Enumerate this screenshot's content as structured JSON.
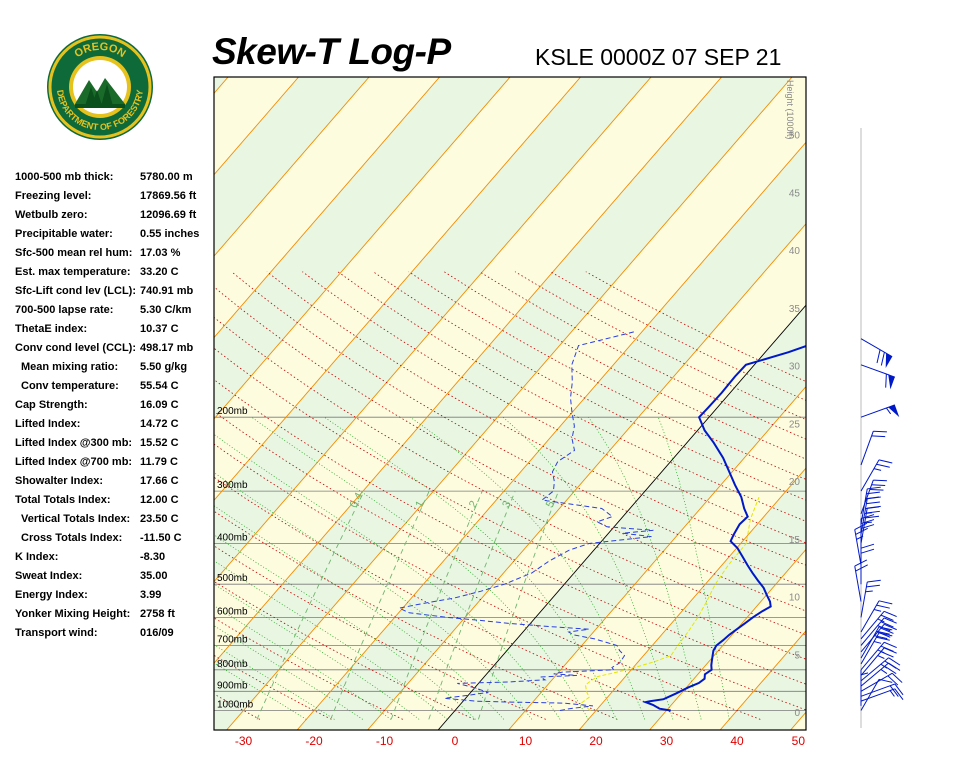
{
  "logo": {
    "top_text": "OREGON",
    "ring_text": "DEPARTMENT OF FORESTRY"
  },
  "title": "Skew-T Log-P",
  "station_time": "KSLE 0000Z 07 SEP 21",
  "stats": [
    {
      "label": "1000-500 mb thick:",
      "value": "5780.00 m",
      "indent": false
    },
    {
      "label": "Freezing level:",
      "value": "17869.56 ft",
      "indent": false
    },
    {
      "label": "Wetbulb zero:",
      "value": "12096.69 ft",
      "indent": false
    },
    {
      "label": "Precipitable water:",
      "value": "0.55 inches",
      "indent": false
    },
    {
      "label": "Sfc-500 mean rel hum:",
      "value": "17.03 %",
      "indent": false
    },
    {
      "label": "Est. max temperature:",
      "value": "33.20 C",
      "indent": false
    },
    {
      "label": "Sfc-Lift cond lev (LCL):",
      "value": "740.91 mb",
      "indent": false
    },
    {
      "label": "700-500 lapse rate:",
      "value": "5.30 C/km",
      "indent": false
    },
    {
      "label": "ThetaE index:",
      "value": "10.37 C",
      "indent": false
    },
    {
      "label": "Conv cond level (CCL):",
      "value": "498.17 mb",
      "indent": false
    },
    {
      "label": "Mean mixing ratio:",
      "value": "5.50 g/kg",
      "indent": true
    },
    {
      "label": "Conv temperature:",
      "value": "55.54 C",
      "indent": true
    },
    {
      "label": "Cap Strength:",
      "value": "16.09 C",
      "indent": false
    },
    {
      "label": "Lifted Index:",
      "value": "14.72 C",
      "indent": false
    },
    {
      "label": "Lifted Index @300 mb:",
      "value": "15.52 C",
      "indent": false
    },
    {
      "label": "Lifted Index @700 mb:",
      "value": "11.79 C",
      "indent": false
    },
    {
      "label": "Showalter Index:",
      "value": "17.66 C",
      "indent": false
    },
    {
      "label": "Total Totals Index:",
      "value": "12.00 C",
      "indent": false
    },
    {
      "label": "Vertical Totals Index:",
      "value": "23.50 C",
      "indent": true
    },
    {
      "label": "Cross Totals Index:",
      "value": "-11.50 C",
      "indent": true
    },
    {
      "label": "K Index:",
      "value": "-8.30",
      "indent": false
    },
    {
      "label": "Sweat Index:",
      "value": "35.00",
      "indent": false
    },
    {
      "label": "Energy Index:",
      "value": "3.99",
      "indent": false
    },
    {
      "label": "Yonker Mixing Height:",
      "value": "2758 ft",
      "indent": false
    },
    {
      "label": "Transport wind:",
      "value": "016/09",
      "indent": false
    }
  ],
  "chart_data": {
    "type": "line",
    "x_axis": {
      "unit": "C",
      "range": [
        -30,
        50
      ],
      "ticks": [
        -30,
        -20,
        -10,
        0,
        10,
        20,
        30,
        40,
        50
      ]
    },
    "pressure_levels": [
      {
        "p": 200,
        "label": "200mb"
      },
      {
        "p": 300,
        "label": "300mb"
      },
      {
        "p": 400,
        "label": "400mb"
      },
      {
        "p": 500,
        "label": "500mb"
      },
      {
        "p": 600,
        "label": "600mb"
      },
      {
        "p": 700,
        "label": "700mb"
      },
      {
        "p": 800,
        "label": "800mb"
      },
      {
        "p": 900,
        "label": "900mb"
      },
      {
        "p": 1000,
        "label": "1000mb"
      }
    ],
    "height_axis": {
      "label": "Height (1000ft)",
      "ticks": [
        {
          "ft": 0,
          "label": "0"
        },
        {
          "ft": 5,
          "label": "5"
        },
        {
          "ft": 10,
          "label": "10"
        },
        {
          "ft": 15,
          "label": "15"
        },
        {
          "ft": 20,
          "label": "20"
        },
        {
          "ft": 25,
          "label": "25"
        },
        {
          "ft": 30,
          "label": "30"
        },
        {
          "ft": 35,
          "label": "35"
        },
        {
          "ft": 40,
          "label": "40"
        },
        {
          "ft": 45,
          "label": "45"
        },
        {
          "ft": 50,
          "label": "50"
        }
      ]
    },
    "mixing_ratio_labels": [
      "0.4",
      "1",
      "2",
      "3",
      "5"
    ],
    "temperature_profile": [
      [
        1000,
        30.6
      ],
      [
        990,
        28.8
      ],
      [
        970,
        27.4
      ],
      [
        955,
        26.0
      ],
      [
        950,
        26.5
      ],
      [
        940,
        28.2
      ],
      [
        910,
        29.3
      ],
      [
        880,
        30.3
      ],
      [
        860,
        31.2
      ],
      [
        840,
        31.5
      ],
      [
        820,
        31.0
      ],
      [
        800,
        31.4
      ],
      [
        780,
        30.8
      ],
      [
        760,
        30.3
      ],
      [
        740,
        29.8
      ],
      [
        720,
        29.3
      ],
      [
        700,
        29.1
      ],
      [
        680,
        29.4
      ],
      [
        660,
        29.6
      ],
      [
        640,
        30.0
      ],
      [
        620,
        30.4
      ],
      [
        600,
        30.8
      ],
      [
        580,
        31.4
      ],
      [
        565,
        32.0
      ],
      [
        550,
        31.3
      ],
      [
        530,
        30.0
      ],
      [
        510,
        28.7
      ],
      [
        490,
        27.0
      ],
      [
        470,
        25.3
      ],
      [
        450,
        23.6
      ],
      [
        430,
        21.9
      ],
      [
        410,
        20.1
      ],
      [
        395,
        18.3
      ],
      [
        380,
        17.9
      ],
      [
        360,
        17.5
      ],
      [
        345,
        17.7
      ],
      [
        330,
        16.2
      ],
      [
        310,
        14.4
      ],
      [
        290,
        12.0
      ],
      [
        270,
        9.6
      ],
      [
        250,
        7.0
      ],
      [
        230,
        3.8
      ],
      [
        215,
        1.0
      ],
      [
        200,
        -1.4
      ],
      [
        190,
        -1.3
      ],
      [
        175,
        -1.2
      ],
      [
        160,
        -1.3
      ],
      [
        150,
        -1.2
      ],
      [
        140,
        3.3
      ],
      [
        130,
        7.1
      ],
      [
        122,
        9.8
      ]
    ],
    "dewpoint_profile": [
      [
        1000,
        14.9
      ],
      [
        990,
        16.0
      ],
      [
        975,
        19.0
      ],
      [
        960,
        14.5
      ],
      [
        955,
        7.0
      ],
      [
        950,
        2.0
      ],
      [
        935,
        -3.0
      ],
      [
        920,
        0.0
      ],
      [
        905,
        2.5
      ],
      [
        880,
        -0.4
      ],
      [
        862,
        -3.0
      ],
      [
        855,
        4.0
      ],
      [
        845,
        9.0
      ],
      [
        832,
        8.0
      ],
      [
        825,
        13.0
      ],
      [
        818,
        9.5
      ],
      [
        810,
        10.5
      ],
      [
        800,
        17.5
      ],
      [
        790,
        17.0
      ],
      [
        770,
        17.5
      ],
      [
        740,
        17.3
      ],
      [
        720,
        16.0
      ],
      [
        700,
        15.0
      ],
      [
        675,
        11.0
      ],
      [
        660,
        7.5
      ],
      [
        650,
        6.5
      ],
      [
        640,
        9.0
      ],
      [
        630,
        2.5
      ],
      [
        620,
        -3.0
      ],
      [
        610,
        -7.5
      ],
      [
        600,
        -12.5
      ],
      [
        585,
        -18.5
      ],
      [
        570,
        -20.5
      ],
      [
        555,
        -17.5
      ],
      [
        540,
        -14.0
      ],
      [
        520,
        -11.0
      ],
      [
        500,
        -8.5
      ],
      [
        470,
        -6.0
      ],
      [
        440,
        -5.0
      ],
      [
        415,
        -3.5
      ],
      [
        400,
        -1.5
      ],
      [
        385,
        6.5
      ],
      [
        378,
        2.0
      ],
      [
        372,
        6.0
      ],
      [
        365,
        -1.0
      ],
      [
        355,
        -3.0
      ],
      [
        345,
        -1.5
      ],
      [
        330,
        -4.0
      ],
      [
        315,
        -13.5
      ],
      [
        300,
        -13.0
      ],
      [
        285,
        -14.0
      ],
      [
        270,
        -15.5
      ],
      [
        255,
        -16.0
      ],
      [
        240,
        -15.0
      ],
      [
        225,
        -16.8
      ],
      [
        210,
        -18.0
      ],
      [
        195,
        -20.0
      ],
      [
        180,
        -22.0
      ],
      [
        165,
        -23.7
      ],
      [
        150,
        -25.9
      ],
      [
        135,
        -27.3
      ],
      [
        125,
        -21.0
      ]
    ],
    "parcel_path": [
      [
        1000,
        19.2
      ],
      [
        960,
        17.0
      ],
      [
        930,
        17.4
      ],
      [
        900,
        16.3
      ],
      [
        870,
        15.4
      ],
      [
        850,
        15.6
      ],
      [
        830,
        16.1
      ],
      [
        805,
        18.8
      ],
      [
        790,
        20.2
      ],
      [
        765,
        22.3
      ],
      [
        740,
        23.9
      ],
      [
        700,
        23.6
      ],
      [
        650,
        23.4
      ],
      [
        600,
        23.0
      ],
      [
        550,
        22.3
      ],
      [
        500,
        21.4
      ],
      [
        450,
        20.9
      ],
      [
        400,
        20.8
      ],
      [
        350,
        18.4
      ],
      [
        310,
        16.9
      ]
    ],
    "winds": [
      {
        "p": 1000,
        "dir": 30,
        "spd": 10
      },
      {
        "p": 975,
        "dir": 360,
        "spd": 5
      },
      {
        "p": 950,
        "dir": 70,
        "spd": 15
      },
      {
        "p": 925,
        "dir": 70,
        "spd": 20
      },
      {
        "p": 900,
        "dir": 60,
        "spd": 20
      },
      {
        "p": 875,
        "dir": 50,
        "spd": 25
      },
      {
        "p": 850,
        "dir": 50,
        "spd": 25
      },
      {
        "p": 825,
        "dir": 40,
        "spd": 25
      },
      {
        "p": 800,
        "dir": 40,
        "spd": 25
      },
      {
        "p": 775,
        "dir": 30,
        "spd": 25
      },
      {
        "p": 750,
        "dir": 30,
        "spd": 30
      },
      {
        "p": 725,
        "dir": 40,
        "spd": 30
      },
      {
        "p": 700,
        "dir": 40,
        "spd": 30
      },
      {
        "p": 675,
        "dir": 40,
        "spd": 25
      },
      {
        "p": 650,
        "dir": 30,
        "spd": 25
      },
      {
        "p": 600,
        "dir": 10,
        "spd": 25
      },
      {
        "p": 550,
        "dir": 350,
        "spd": 20
      },
      {
        "p": 500,
        "dir": 360,
        "spd": 20
      },
      {
        "p": 450,
        "dir": 350,
        "spd": 25
      },
      {
        "p": 425,
        "dir": 360,
        "spd": 30
      },
      {
        "p": 400,
        "dir": 10,
        "spd": 35
      },
      {
        "p": 380,
        "dir": 10,
        "spd": 35
      },
      {
        "p": 360,
        "dir": 10,
        "spd": 30
      },
      {
        "p": 340,
        "dir": 20,
        "spd": 30
      },
      {
        "p": 300,
        "dir": 30,
        "spd": 25
      },
      {
        "p": 260,
        "dir": 20,
        "spd": 20
      },
      {
        "p": 200,
        "dir": 70,
        "spd": 55
      },
      {
        "p": 150,
        "dir": 110,
        "spd": 60
      },
      {
        "p": 130,
        "dir": 120,
        "spd": 70
      }
    ]
  },
  "colors": {
    "temperature": "#0019c8",
    "dewpoint": "#2a3fe0",
    "parcel": "#e6e600",
    "isotherm": "#f28c00",
    "dry_adiabat": "#c00000",
    "moist_adiabat": "#16a016",
    "mixing_ratio": "#6fb56f",
    "band_yellow": "#fefcdf",
    "band_green": "#e9f7e2",
    "axis_label": "#e00000"
  }
}
